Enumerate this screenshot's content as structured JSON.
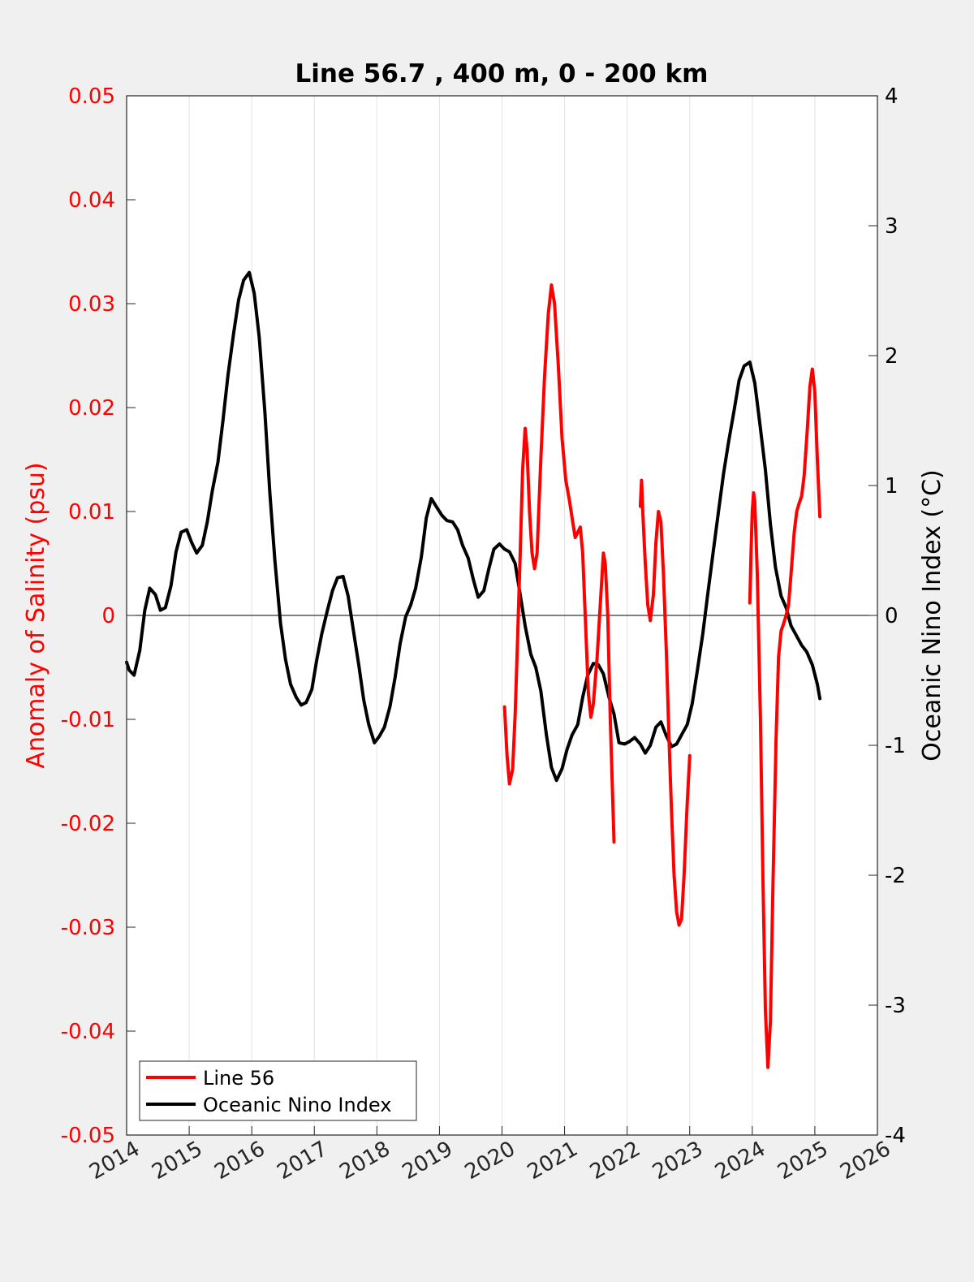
{
  "chart_data": {
    "type": "line",
    "title": "Line 56.7 , 400 m, 0 - 200 km",
    "left_axis": {
      "label": "Anomaly of Salinity (psu)",
      "color": "#ff0000",
      "range": [
        -0.05,
        0.05
      ],
      "ticks": [
        0.05,
        0.04,
        0.03,
        0.02,
        0.01,
        0,
        -0.01,
        -0.02,
        -0.03,
        -0.04,
        -0.05
      ],
      "tick_labels": [
        "0.05",
        "0.04",
        "0.03",
        "0.02",
        "0.01",
        "0",
        "-0.01",
        "-0.02",
        "-0.03",
        "-0.04",
        "-0.05"
      ]
    },
    "right_axis": {
      "label": "Oceanic Nino Index (°C)",
      "color": "#000000",
      "range": [
        -4,
        4
      ],
      "ticks": [
        4,
        3,
        2,
        1,
        0,
        -1,
        -2,
        -3,
        -4
      ],
      "tick_labels": [
        "4",
        "3",
        "2",
        "1",
        "0",
        "-1",
        "-2",
        "-3",
        "-4"
      ]
    },
    "x_axis": {
      "range": [
        2014,
        2026
      ],
      "ticks": [
        2014,
        2015,
        2016,
        2017,
        2018,
        2019,
        2020,
        2021,
        2022,
        2023,
        2024,
        2025,
        2026
      ],
      "tick_labels": [
        "2014",
        "2015",
        "2016",
        "2017",
        "2018",
        "2019",
        "2020",
        "2021",
        "2022",
        "2023",
        "2024",
        "2025",
        "2026"
      ]
    },
    "grid": "vertical",
    "zero_line": true,
    "legend": {
      "position": "bottom-left",
      "entries": [
        {
          "label": "Line 56",
          "color": "#ff0000"
        },
        {
          "label": "Oceanic Nino Index",
          "color": "#000000"
        }
      ]
    },
    "series": [
      {
        "name": "Line 56",
        "axis": "left",
        "color": "#ff0000",
        "segments": [
          [
            [
              2020.04,
              -0.0088
            ],
            [
              2020.08,
              -0.0135
            ],
            [
              2020.12,
              -0.0162
            ],
            [
              2020.17,
              -0.0148
            ],
            [
              2020.21,
              -0.0095
            ],
            [
              2020.25,
              -0.002
            ],
            [
              2020.29,
              0.006
            ],
            [
              2020.33,
              0.014
            ],
            [
              2020.37,
              0.018
            ],
            [
              2020.4,
              0.016
            ],
            [
              2020.44,
              0.01
            ],
            [
              2020.48,
              0.006
            ],
            [
              2020.52,
              0.0045
            ],
            [
              2020.56,
              0.006
            ],
            [
              2020.62,
              0.015
            ],
            [
              2020.68,
              0.023
            ],
            [
              2020.74,
              0.029
            ],
            [
              2020.79,
              0.0318
            ],
            [
              2020.84,
              0.03
            ],
            [
              2020.9,
              0.024
            ],
            [
              2020.96,
              0.017
            ],
            [
              2021.02,
              0.013
            ],
            [
              2021.08,
              0.011
            ],
            [
              2021.13,
              0.009
            ],
            [
              2021.17,
              0.0075
            ],
            [
              2021.21,
              0.008
            ],
            [
              2021.25,
              0.0085
            ],
            [
              2021.29,
              0.006
            ],
            [
              2021.33,
              0.0
            ],
            [
              2021.38,
              -0.0075
            ],
            [
              2021.42,
              -0.0098
            ],
            [
              2021.46,
              -0.0085
            ],
            [
              2021.52,
              -0.004
            ],
            [
              2021.58,
              0.002
            ],
            [
              2021.62,
              0.006
            ],
            [
              2021.65,
              0.005
            ],
            [
              2021.69,
              0.0
            ],
            [
              2021.73,
              -0.01
            ],
            [
              2021.79,
              -0.0218
            ]
          ],
          [
            [
              2022.21,
              0.0105
            ],
            [
              2022.23,
              0.013
            ],
            [
              2022.25,
              0.01
            ],
            [
              2022.29,
              0.005
            ],
            [
              2022.33,
              0.001
            ],
            [
              2022.37,
              -0.0005
            ],
            [
              2022.42,
              0.002
            ],
            [
              2022.46,
              0.007
            ],
            [
              2022.5,
              0.01
            ],
            [
              2022.54,
              0.009
            ],
            [
              2022.58,
              0.004
            ],
            [
              2022.63,
              -0.004
            ],
            [
              2022.67,
              -0.012
            ],
            [
              2022.71,
              -0.019
            ],
            [
              2022.75,
              -0.025
            ],
            [
              2022.79,
              -0.0285
            ],
            [
              2022.83,
              -0.0298
            ],
            [
              2022.87,
              -0.0292
            ],
            [
              2022.91,
              -0.025
            ],
            [
              2022.96,
              -0.018
            ],
            [
              2023.0,
              -0.0135
            ]
          ],
          [
            [
              2023.96,
              0.0012
            ],
            [
              2023.98,
              0.006
            ],
            [
              2024.0,
              0.01
            ],
            [
              2024.02,
              0.0118
            ],
            [
              2024.04,
              0.011
            ],
            [
              2024.08,
              0.004
            ],
            [
              2024.13,
              -0.01
            ],
            [
              2024.17,
              -0.025
            ],
            [
              2024.21,
              -0.038
            ],
            [
              2024.25,
              -0.0435
            ],
            [
              2024.29,
              -0.039
            ],
            [
              2024.33,
              -0.026
            ],
            [
              2024.38,
              -0.012
            ],
            [
              2024.42,
              -0.004
            ],
            [
              2024.46,
              -0.0015
            ],
            [
              2024.5,
              -0.0008
            ],
            [
              2024.54,
              0.0
            ],
            [
              2024.58,
              0.001
            ],
            [
              2024.62,
              0.004
            ],
            [
              2024.67,
              0.008
            ],
            [
              2024.71,
              0.01
            ],
            [
              2024.75,
              0.0108
            ],
            [
              2024.79,
              0.0115
            ],
            [
              2024.83,
              0.0135
            ],
            [
              2024.88,
              0.018
            ],
            [
              2024.92,
              0.022
            ],
            [
              2024.96,
              0.0237
            ],
            [
              2025.0,
              0.0215
            ],
            [
              2025.04,
              0.015
            ],
            [
              2025.08,
              0.0095
            ]
          ]
        ]
      },
      {
        "name": "Oceanic Nino Index",
        "axis": "right",
        "color": "#000000",
        "segments": [
          [
            [
              2014.0,
              -0.36
            ],
            [
              2014.04,
              -0.42
            ],
            [
              2014.12,
              -0.46
            ],
            [
              2014.21,
              -0.27
            ],
            [
              2014.29,
              0.04
            ],
            [
              2014.37,
              0.21
            ],
            [
              2014.46,
              0.16
            ],
            [
              2014.54,
              0.04
            ],
            [
              2014.62,
              0.06
            ],
            [
              2014.71,
              0.23
            ],
            [
              2014.79,
              0.49
            ],
            [
              2014.87,
              0.64
            ],
            [
              2014.96,
              0.66
            ],
            [
              2015.04,
              0.56
            ],
            [
              2015.12,
              0.48
            ],
            [
              2015.21,
              0.54
            ],
            [
              2015.29,
              0.72
            ],
            [
              2015.37,
              0.96
            ],
            [
              2015.46,
              1.18
            ],
            [
              2015.54,
              1.5
            ],
            [
              2015.62,
              1.85
            ],
            [
              2015.71,
              2.17
            ],
            [
              2015.79,
              2.43
            ],
            [
              2015.87,
              2.58
            ],
            [
              2015.96,
              2.64
            ],
            [
              2016.04,
              2.48
            ],
            [
              2016.12,
              2.14
            ],
            [
              2016.21,
              1.56
            ],
            [
              2016.29,
              0.94
            ],
            [
              2016.37,
              0.42
            ],
            [
              2016.46,
              -0.06
            ],
            [
              2016.54,
              -0.34
            ],
            [
              2016.62,
              -0.53
            ],
            [
              2016.71,
              -0.63
            ],
            [
              2016.79,
              -0.69
            ],
            [
              2016.87,
              -0.67
            ],
            [
              2016.96,
              -0.57
            ],
            [
              2017.04,
              -0.34
            ],
            [
              2017.12,
              -0.14
            ],
            [
              2017.21,
              0.04
            ],
            [
              2017.29,
              0.19
            ],
            [
              2017.37,
              0.29
            ],
            [
              2017.46,
              0.3
            ],
            [
              2017.54,
              0.15
            ],
            [
              2017.62,
              -0.1
            ],
            [
              2017.71,
              -0.38
            ],
            [
              2017.79,
              -0.65
            ],
            [
              2017.87,
              -0.84
            ],
            [
              2017.96,
              -0.98
            ],
            [
              2018.04,
              -0.93
            ],
            [
              2018.12,
              -0.86
            ],
            [
              2018.21,
              -0.7
            ],
            [
              2018.29,
              -0.48
            ],
            [
              2018.37,
              -0.22
            ],
            [
              2018.46,
              -0.01
            ],
            [
              2018.54,
              0.08
            ],
            [
              2018.62,
              0.21
            ],
            [
              2018.71,
              0.45
            ],
            [
              2018.79,
              0.75
            ],
            [
              2018.87,
              0.9
            ],
            [
              2018.96,
              0.83
            ],
            [
              2019.04,
              0.77
            ],
            [
              2019.12,
              0.73
            ],
            [
              2019.21,
              0.72
            ],
            [
              2019.29,
              0.66
            ],
            [
              2019.37,
              0.54
            ],
            [
              2019.46,
              0.44
            ],
            [
              2019.54,
              0.28
            ],
            [
              2019.62,
              0.14
            ],
            [
              2019.71,
              0.19
            ],
            [
              2019.79,
              0.36
            ],
            [
              2019.87,
              0.51
            ],
            [
              2019.96,
              0.55
            ],
            [
              2020.04,
              0.51
            ],
            [
              2020.12,
              0.49
            ],
            [
              2020.21,
              0.4
            ],
            [
              2020.29,
              0.16
            ],
            [
              2020.37,
              -0.08
            ],
            [
              2020.46,
              -0.3
            ],
            [
              2020.54,
              -0.4
            ],
            [
              2020.62,
              -0.58
            ],
            [
              2020.71,
              -0.92
            ],
            [
              2020.79,
              -1.17
            ],
            [
              2020.87,
              -1.27
            ],
            [
              2020.96,
              -1.18
            ],
            [
              2021.04,
              -1.03
            ],
            [
              2021.12,
              -0.92
            ],
            [
              2021.21,
              -0.84
            ],
            [
              2021.29,
              -0.63
            ],
            [
              2021.37,
              -0.46
            ],
            [
              2021.46,
              -0.37
            ],
            [
              2021.54,
              -0.38
            ],
            [
              2021.62,
              -0.45
            ],
            [
              2021.71,
              -0.63
            ],
            [
              2021.79,
              -0.76
            ],
            [
              2021.87,
              -0.98
            ],
            [
              2021.96,
              -0.99
            ],
            [
              2022.04,
              -0.97
            ],
            [
              2022.12,
              -0.94
            ],
            [
              2022.21,
              -0.99
            ],
            [
              2022.29,
              -1.06
            ],
            [
              2022.37,
              -1.0
            ],
            [
              2022.46,
              -0.86
            ],
            [
              2022.54,
              -0.82
            ],
            [
              2022.62,
              -0.92
            ],
            [
              2022.71,
              -1.01
            ],
            [
              2022.79,
              -0.99
            ],
            [
              2022.87,
              -0.92
            ],
            [
              2022.96,
              -0.84
            ],
            [
              2023.04,
              -0.68
            ],
            [
              2023.12,
              -0.43
            ],
            [
              2023.21,
              -0.14
            ],
            [
              2023.29,
              0.17
            ],
            [
              2023.37,
              0.47
            ],
            [
              2023.46,
              0.8
            ],
            [
              2023.54,
              1.09
            ],
            [
              2023.62,
              1.33
            ],
            [
              2023.71,
              1.58
            ],
            [
              2023.79,
              1.81
            ],
            [
              2023.87,
              1.92
            ],
            [
              2023.96,
              1.95
            ],
            [
              2024.04,
              1.79
            ],
            [
              2024.12,
              1.48
            ],
            [
              2024.21,
              1.12
            ],
            [
              2024.29,
              0.7
            ],
            [
              2024.37,
              0.37
            ],
            [
              2024.46,
              0.15
            ],
            [
              2024.54,
              0.06
            ],
            [
              2024.62,
              -0.08
            ],
            [
              2024.71,
              -0.16
            ],
            [
              2024.79,
              -0.23
            ],
            [
              2024.87,
              -0.28
            ],
            [
              2024.96,
              -0.38
            ],
            [
              2025.04,
              -0.53
            ],
            [
              2025.08,
              -0.64
            ]
          ]
        ]
      }
    ]
  }
}
